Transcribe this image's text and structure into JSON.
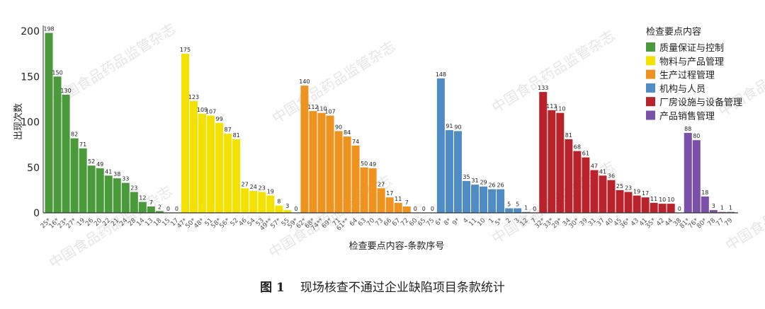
{
  "chart_data": {
    "type": "bar",
    "xlabel": "检查要点内容-条款序号",
    "ylabel": "出现次数",
    "ylim": [
      0,
      200
    ],
    "yticks": [
      0,
      50,
      100,
      150,
      200
    ],
    "grid": false,
    "legend_title": "检查要点内容",
    "legend_position": "top-right",
    "series": [
      {
        "name": "质量保证与控制",
        "color": "#4a9a3c",
        "categories": [
          "25*",
          "16*",
          "23*",
          "27*",
          "19",
          "26",
          "20",
          "22",
          "21",
          "24",
          "28",
          "14",
          "13",
          "18",
          "15",
          "17"
        ],
        "values": [
          198,
          150,
          130,
          82,
          71,
          52,
          49,
          41,
          38,
          33,
          23,
          12,
          7,
          2,
          0,
          0
        ]
      },
      {
        "name": "物料与产品管理",
        "color": "#f5e100",
        "categories": [
          "47*",
          "50*",
          "48*",
          "51",
          "58*",
          "56*",
          "52",
          "46",
          "54",
          "53",
          "49**",
          "57*",
          "55",
          "59*"
        ],
        "values": [
          175,
          123,
          109,
          107,
          99,
          87,
          81,
          27,
          24,
          23,
          19,
          8,
          3,
          0
        ]
      },
      {
        "name": "生产过程管理",
        "color": "#f0921e",
        "categories": [
          "62*",
          "68*",
          "74**",
          "69*",
          "71",
          "61**",
          "64",
          "63",
          "70",
          "73",
          "66",
          "67",
          "72",
          "60",
          "65",
          "75"
        ],
        "values": [
          140,
          112,
          110,
          107,
          90,
          84,
          74,
          50,
          49,
          27,
          17,
          11,
          7,
          0,
          0,
          0
        ]
      },
      {
        "name": "机构与人员",
        "color": "#4f8bc4",
        "categories": [
          "6*",
          "8*",
          "9*",
          "4",
          "11",
          "10",
          "1",
          "5*",
          "2",
          "3",
          "12",
          "7"
        ],
        "values": [
          148,
          91,
          90,
          35,
          31,
          29,
          26,
          26,
          5,
          5,
          1,
          0
        ]
      },
      {
        "name": "厂房设施与设备管理",
        "color": "#b8222a",
        "categories": [
          "32*",
          "33*",
          "29*",
          "34",
          "30*",
          "39",
          "31",
          "37",
          "40",
          "45",
          "36*",
          "43",
          "41",
          "35*",
          "42",
          "44",
          "38"
        ],
        "values": [
          133,
          113,
          110,
          81,
          68,
          61,
          47,
          41,
          36,
          25,
          23,
          19,
          17,
          11,
          10,
          10,
          0
        ]
      },
      {
        "name": "产品销售管理",
        "color": "#7a50a8",
        "categories": [
          "81*",
          "76*",
          "80*",
          "78",
          "77",
          "79"
        ],
        "values": [
          88,
          80,
          18,
          3,
          1,
          1
        ]
      }
    ]
  },
  "caption": {
    "figure": "图 1",
    "text": "现场核查不通过企业缺陷项目条款统计"
  },
  "watermark": "中国食品药品监管杂志"
}
